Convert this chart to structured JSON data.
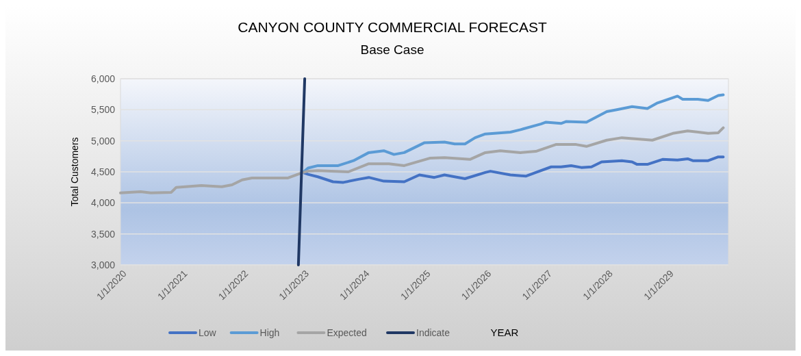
{
  "chart_data": {
    "type": "line",
    "title": "CANYON COUNTY COMMERCIAL FORECAST",
    "subtitle": "Base Case",
    "xlabel": "YEAR",
    "ylabel": "Total Customers",
    "xlim": [
      "2020-01-01",
      "2030-01-01"
    ],
    "xticks": [
      {
        "value": "2020-01-01",
        "label": "1/1/2020"
      },
      {
        "value": "2021-01-01",
        "label": "1/1/2021"
      },
      {
        "value": "2022-01-01",
        "label": "1/1/2022"
      },
      {
        "value": "2023-01-01",
        "label": "1/1/2023"
      },
      {
        "value": "2024-01-01",
        "label": "1/1/2024"
      },
      {
        "value": "2025-01-01",
        "label": "1/1/2025"
      },
      {
        "value": "2026-01-01",
        "label": "1/1/2026"
      },
      {
        "value": "2027-01-01",
        "label": "1/1/2027"
      },
      {
        "value": "2028-01-01",
        "label": "1/1/2028"
      },
      {
        "value": "2029-01-01",
        "label": "1/1/2029"
      }
    ],
    "ylim": [
      3000,
      6000
    ],
    "yticks": [
      {
        "value": 3000,
        "label": "3,000"
      },
      {
        "value": 3500,
        "label": "3,500"
      },
      {
        "value": 4000,
        "label": "4,000"
      },
      {
        "value": 4500,
        "label": "4,500"
      },
      {
        "value": 5000,
        "label": "5,000"
      },
      {
        "value": 5500,
        "label": "5,500"
      },
      {
        "value": 6000,
        "label": "6,000"
      }
    ],
    "grid": "y",
    "legend": "bottom",
    "marker": "none",
    "line_style": "solid",
    "series": [
      {
        "name": "Low",
        "color": "#4472c4",
        "x": [
          "2023-01",
          "2023-02",
          "2023-04",
          "2023-07",
          "2023-09",
          "2023-12",
          "2024-02",
          "2024-05",
          "2024-09",
          "2024-12",
          "2025-03",
          "2025-05",
          "2025-09",
          "2026-01",
          "2026-02",
          "2026-06",
          "2026-09",
          "2026-11",
          "2027-02",
          "2027-04",
          "2027-06",
          "2027-08",
          "2027-10",
          "2027-12",
          "2028-04",
          "2028-06",
          "2028-07",
          "2028-09",
          "2028-12",
          "2029-03",
          "2029-05",
          "2029-06",
          "2029-09",
          "2029-11",
          "2029-12"
        ],
        "values": [
          4490,
          4460,
          4420,
          4340,
          4330,
          4380,
          4410,
          4350,
          4340,
          4450,
          4410,
          4450,
          4390,
          4490,
          4510,
          4450,
          4430,
          4490,
          4580,
          4580,
          4600,
          4570,
          4580,
          4660,
          4680,
          4660,
          4620,
          4620,
          4700,
          4690,
          4710,
          4680,
          4680,
          4740,
          4740
        ]
      },
      {
        "name": "High",
        "color": "#5b9bd5",
        "x": [
          "2023-01",
          "2023-02",
          "2023-04",
          "2023-08",
          "2023-11",
          "2024-02",
          "2024-05",
          "2024-07",
          "2024-09",
          "2025-01",
          "2025-05",
          "2025-07",
          "2025-09",
          "2025-11",
          "2026-01",
          "2026-06",
          "2026-08",
          "2026-12",
          "2027-01",
          "2027-04",
          "2027-05",
          "2027-09",
          "2028-01",
          "2028-03",
          "2028-06",
          "2028-09",
          "2028-11",
          "2029-03",
          "2029-04",
          "2029-07",
          "2029-09",
          "2029-11",
          "2029-12"
        ],
        "values": [
          4490,
          4560,
          4600,
          4600,
          4680,
          4810,
          4840,
          4780,
          4810,
          4970,
          4980,
          4950,
          4950,
          5050,
          5110,
          5140,
          5180,
          5270,
          5300,
          5280,
          5310,
          5300,
          5470,
          5500,
          5550,
          5520,
          5610,
          5720,
          5670,
          5670,
          5650,
          5730,
          5740
        ]
      },
      {
        "name": "Expected",
        "color": "#a5a5a5",
        "x": [
          "2020-01",
          "2020-05",
          "2020-07",
          "2020-11",
          "2020-12",
          "2021-05",
          "2021-09",
          "2021-11",
          "2022-01",
          "2022-03",
          "2022-10",
          "2023-01",
          "2023-02",
          "2023-04",
          "2023-10",
          "2024-02",
          "2024-06",
          "2024-09",
          "2025-02",
          "2025-05",
          "2025-10",
          "2026-01",
          "2026-04",
          "2026-08",
          "2026-11",
          "2027-03",
          "2027-07",
          "2027-09",
          "2028-01",
          "2028-04",
          "2028-10",
          "2029-02",
          "2029-05",
          "2029-09",
          "2029-11",
          "2029-12"
        ],
        "values": [
          4160,
          4180,
          4160,
          4170,
          4250,
          4280,
          4260,
          4290,
          4370,
          4400,
          4400,
          4490,
          4510,
          4520,
          4500,
          4630,
          4630,
          4600,
          4720,
          4730,
          4700,
          4810,
          4840,
          4810,
          4830,
          4940,
          4940,
          4910,
          5010,
          5050,
          5010,
          5120,
          5160,
          5120,
          5130,
          5210
        ]
      },
      {
        "name": "Indicate",
        "color": "#203864",
        "x": [
          "2022-12-05",
          "2023-01-12"
        ],
        "values": [
          3000,
          6000
        ]
      }
    ]
  }
}
